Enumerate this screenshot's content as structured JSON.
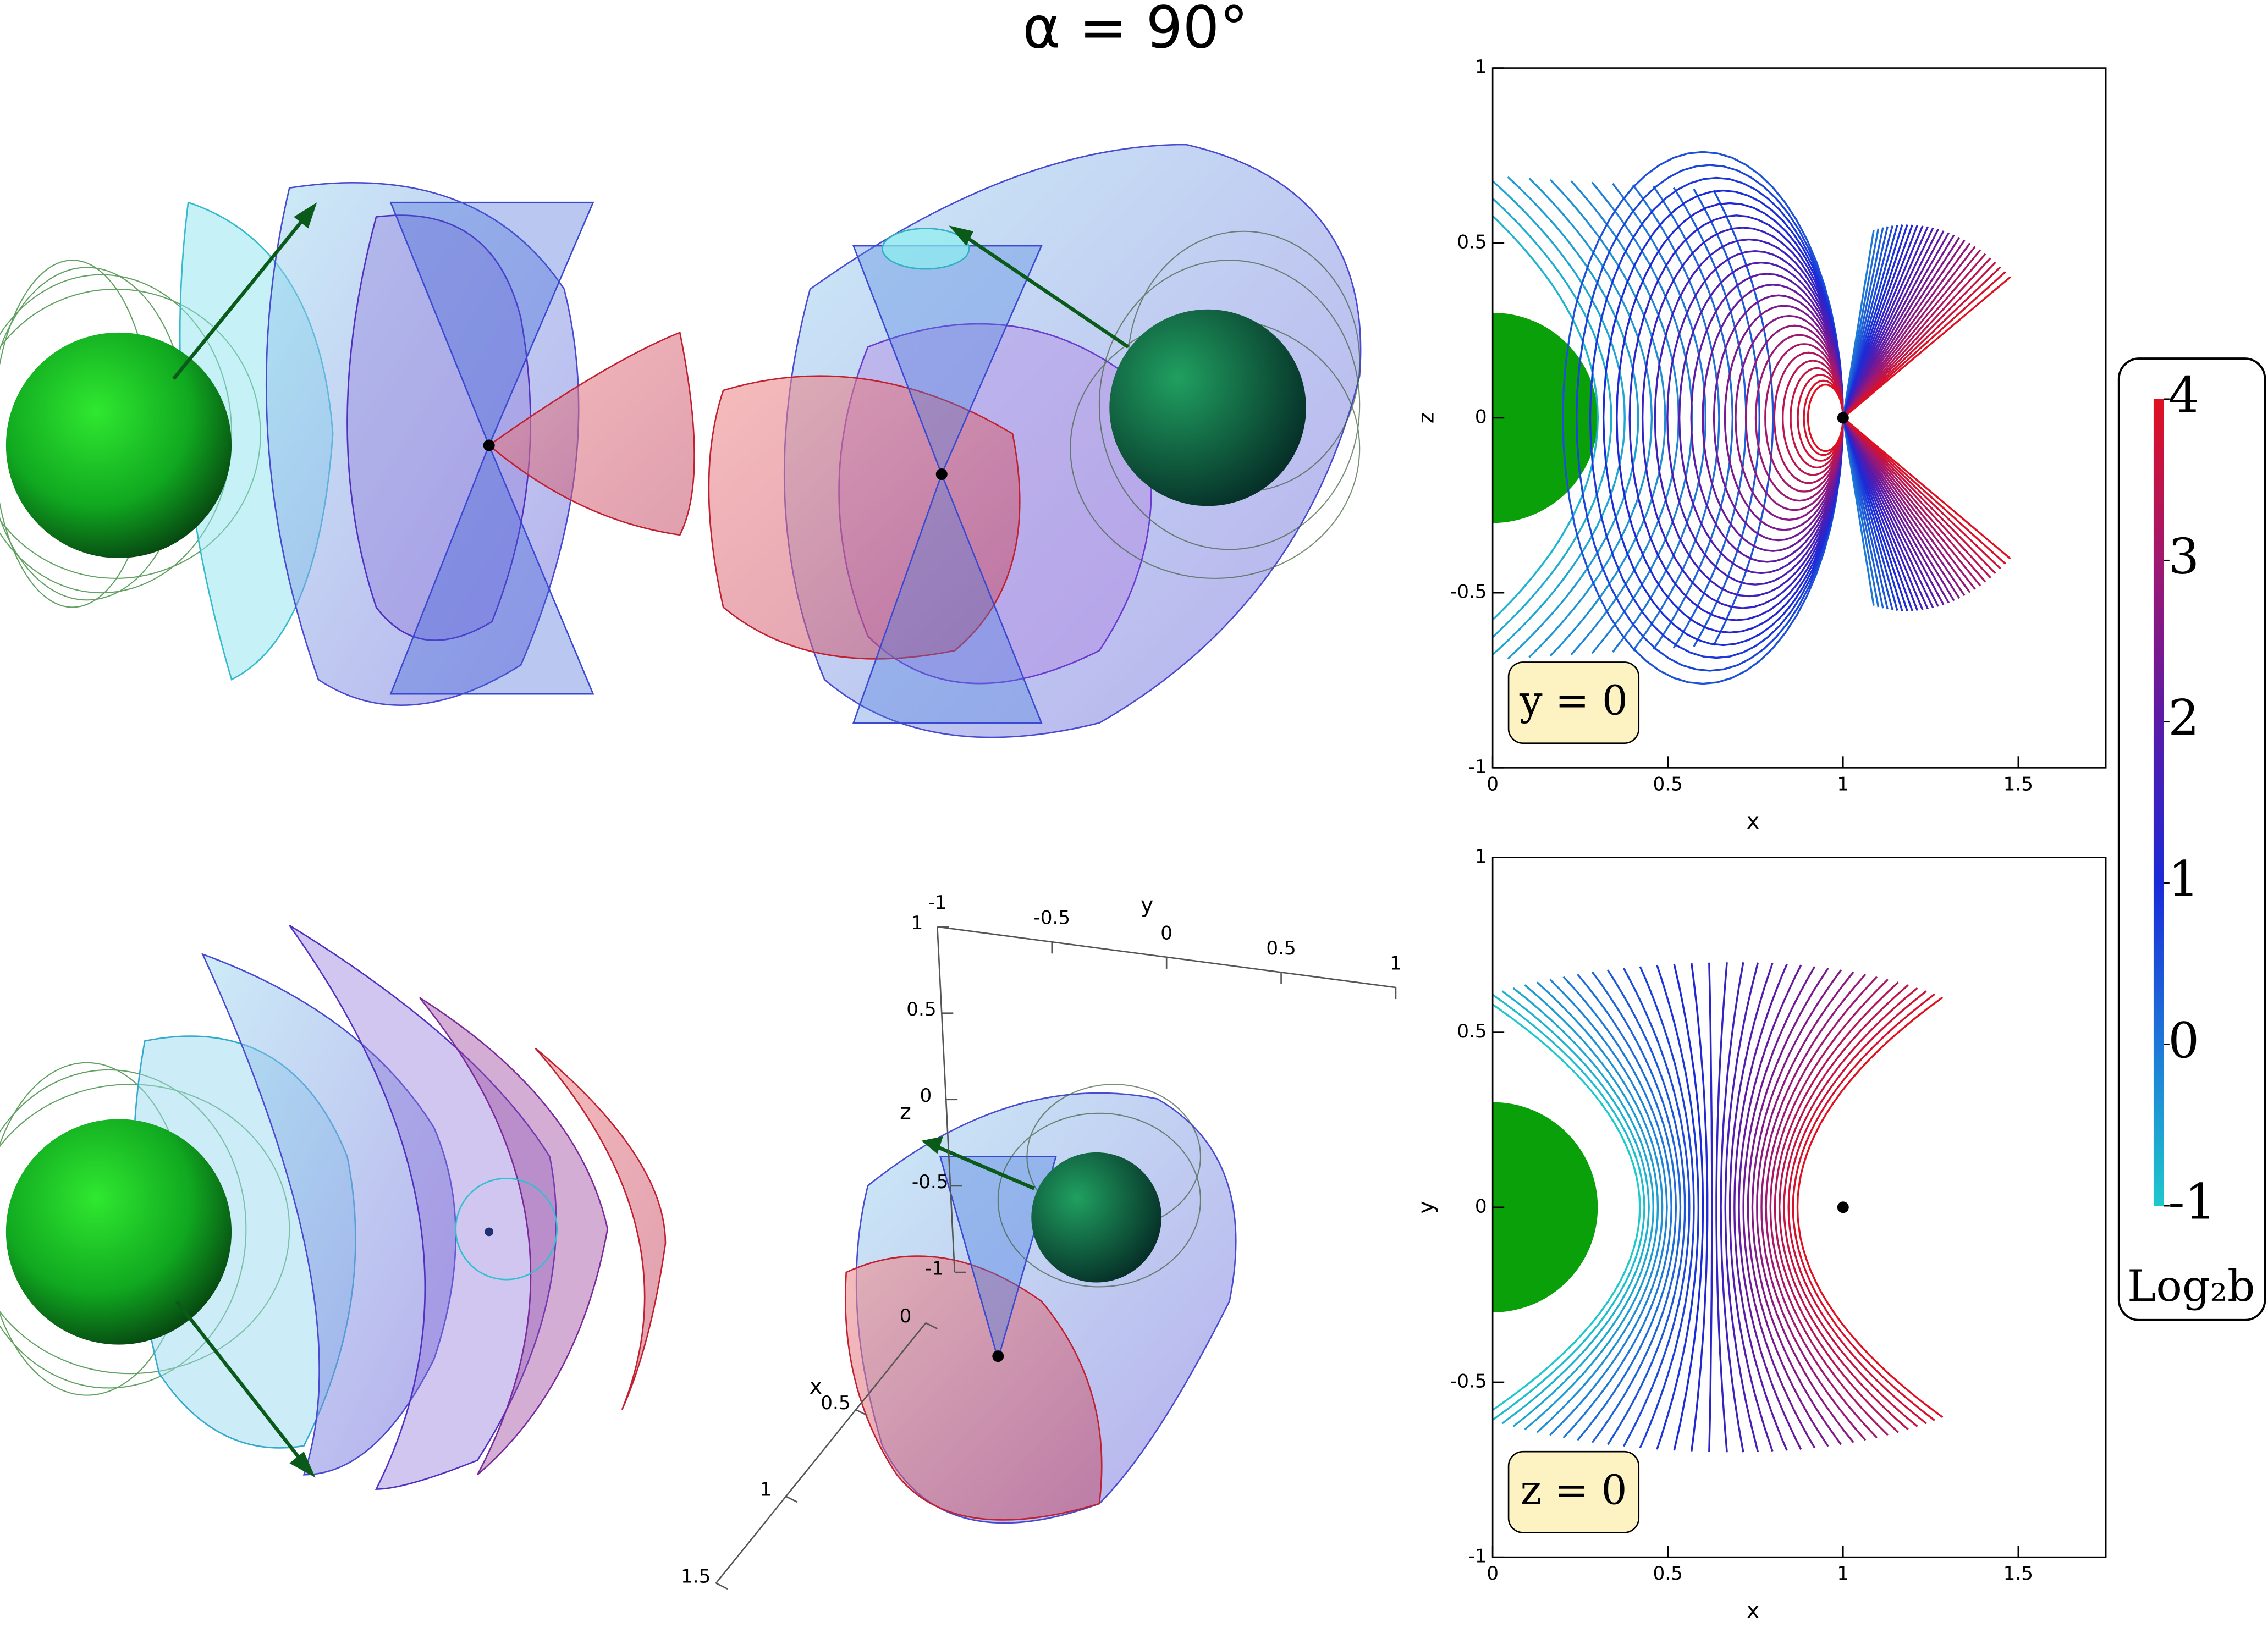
{
  "title": "α = 90°",
  "chart_data": [
    {
      "type": "fieldlines",
      "plane": "xz",
      "xlabel": "x",
      "ylabel": "z",
      "annotation": "y = 0",
      "xlim": [
        0,
        1.75
      ],
      "ylim": [
        -1,
        1
      ],
      "xticks": [
        0,
        0.5,
        1,
        1.5
      ],
      "yticks": [
        -1,
        -0.5,
        0,
        0.5,
        1
      ],
      "point": [
        1,
        0
      ]
    },
    {
      "type": "fieldlines",
      "plane": "xy",
      "xlabel": "x",
      "ylabel": "y",
      "annotation": "z = 0",
      "xlim": [
        0,
        1.75
      ],
      "ylim": [
        -1,
        1
      ],
      "xticks": [
        0,
        0.5,
        1,
        1.5
      ],
      "yticks": [
        -1,
        -0.5,
        0,
        0.5,
        1
      ],
      "point": [
        1,
        0
      ]
    },
    {
      "type": "colorbar",
      "label": "Log₂b",
      "lim": [
        -1,
        4
      ],
      "ticks": [
        -1,
        0,
        1,
        2,
        3,
        4
      ],
      "colors": [
        "#1ec8cc",
        "#1e78d8",
        "#1a2ad8",
        "#5a1aa8",
        "#a01870",
        "#e01020"
      ]
    },
    {
      "type": "axes3d",
      "xlabel": "x",
      "ylabel": "y",
      "zlabel": "z",
      "xlim": [
        0,
        1.5
      ],
      "xticks": [
        0,
        0.5,
        1,
        1.5
      ],
      "ylim": [
        -1,
        1
      ],
      "yticks": [
        -1,
        -0.5,
        0,
        0.5,
        1
      ],
      "zlim": [
        -1,
        1
      ],
      "zticks": [
        -1,
        -0.5,
        0,
        0.5,
        1
      ]
    }
  ]
}
